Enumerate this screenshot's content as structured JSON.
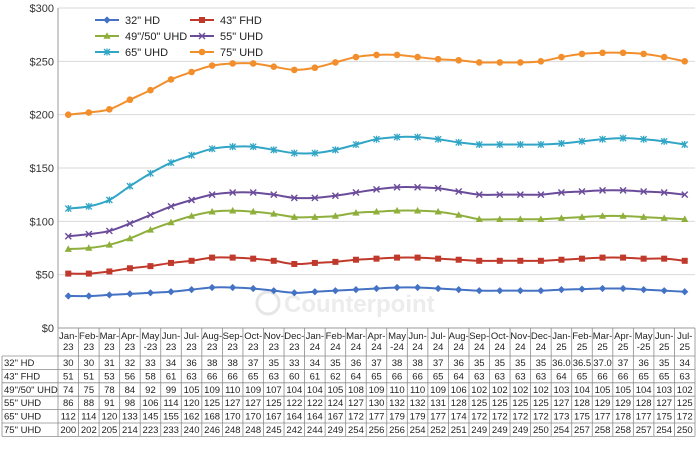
{
  "chart_data": {
    "type": "line",
    "title": "",
    "xlabel": "",
    "ylabel": "",
    "ylim": [
      0,
      300
    ],
    "y_ticks": [
      "$0",
      "$50",
      "$100",
      "$150",
      "$200",
      "$250",
      "$300"
    ],
    "grid": "horizontal",
    "legend_position": "top-left (inside plot)",
    "watermark": "Counterpoint",
    "categories": [
      [
        "Jan-",
        "23"
      ],
      [
        "Feb-",
        "23"
      ],
      [
        "Mar-",
        "23"
      ],
      [
        "Apr-",
        "23"
      ],
      [
        "May",
        "-23"
      ],
      [
        "Jun-",
        "23"
      ],
      [
        "Jul-",
        "23"
      ],
      [
        "Aug-",
        "23"
      ],
      [
        "Sep-",
        "23"
      ],
      [
        "Oct-",
        "23"
      ],
      [
        "Nov-",
        "23"
      ],
      [
        "Dec-",
        "23"
      ],
      [
        "Jan-",
        "24"
      ],
      [
        "Feb-",
        "24"
      ],
      [
        "Mar-",
        "24"
      ],
      [
        "Apr-",
        "24"
      ],
      [
        "May",
        "-24"
      ],
      [
        "Jun-",
        "24"
      ],
      [
        "Jul-",
        "24"
      ],
      [
        "Aug-",
        "24"
      ],
      [
        "Sep-",
        "24"
      ],
      [
        "Oct-",
        "24"
      ],
      [
        "Nov-",
        "24"
      ],
      [
        "Dec-",
        "24"
      ],
      [
        "Jan-",
        "25"
      ],
      [
        "Feb-",
        "25"
      ],
      [
        "Mar-",
        "25"
      ],
      [
        "Apr-",
        "25"
      ],
      [
        "May",
        "-25"
      ],
      [
        "Jun-",
        "25"
      ],
      [
        "Jul-",
        "25"
      ]
    ],
    "series": [
      {
        "name": "32\" HD",
        "color": "#4472C4",
        "marker": "diamond",
        "values": [
          30,
          30,
          31,
          32,
          33,
          34,
          36,
          38,
          38,
          37,
          35,
          33,
          34,
          35,
          36,
          37,
          38,
          38,
          37,
          36,
          35,
          35,
          35,
          35,
          36,
          36.5,
          37,
          37,
          36,
          35,
          34
        ],
        "labels": [
          "30",
          "30",
          "31",
          "32",
          "33",
          "34",
          "36",
          "38",
          "38",
          "37",
          "35",
          "33",
          "34",
          "35",
          "36",
          "37",
          "38",
          "38",
          "37",
          "36",
          "35",
          "35",
          "35",
          "35",
          "36.0",
          "36.5",
          "37.0",
          "37",
          "36",
          "35",
          "34"
        ]
      },
      {
        "name": "43\" FHD",
        "color": "#C0392B",
        "marker": "square",
        "values": [
          51,
          51,
          53,
          56,
          58,
          61,
          63,
          66,
          66,
          65,
          63,
          60,
          61,
          62,
          64,
          65,
          66,
          66,
          65,
          64,
          63,
          63,
          63,
          63,
          64,
          65,
          66,
          66,
          65,
          65,
          63
        ],
        "labels": [
          "51",
          "51",
          "53",
          "56",
          "58",
          "61",
          "63",
          "66",
          "66",
          "65",
          "63",
          "60",
          "61",
          "62",
          "64",
          "65",
          "66",
          "66",
          "65",
          "64",
          "63",
          "63",
          "63",
          "63",
          "64",
          "65",
          "66",
          "66",
          "65",
          "65",
          "63"
        ]
      },
      {
        "name": "49\"/50\" UHD",
        "color": "#8FAF3C",
        "marker": "triangle",
        "values": [
          74,
          75,
          78,
          84,
          92,
          99,
          105,
          109,
          110,
          109,
          107,
          104,
          104,
          105,
          108,
          109,
          110,
          110,
          109,
          106,
          102,
          102,
          102,
          102,
          103,
          104,
          105,
          105,
          104,
          103,
          102
        ],
        "labels": [
          "74",
          "75",
          "78",
          "84",
          "92",
          "99",
          "105",
          "109",
          "110",
          "109",
          "107",
          "104",
          "104",
          "105",
          "108",
          "109",
          "110",
          "110",
          "109",
          "106",
          "102",
          "102",
          "102",
          "102",
          "103",
          "104",
          "105",
          "105",
          "104",
          "103",
          "102"
        ]
      },
      {
        "name": "55\" UHD",
        "color": "#6B4C9A",
        "marker": "x",
        "values": [
          86,
          88,
          91,
          98,
          106,
          114,
          120,
          125,
          127,
          127,
          125,
          122,
          122,
          124,
          127,
          130,
          132,
          132,
          131,
          128,
          125,
          125,
          125,
          125,
          127,
          128,
          129,
          129,
          128,
          127,
          125
        ],
        "labels": [
          "86",
          "88",
          "91",
          "98",
          "106",
          "114",
          "120",
          "125",
          "127",
          "127",
          "125",
          "122",
          "122",
          "124",
          "127",
          "130",
          "132",
          "132",
          "131",
          "128",
          "125",
          "125",
          "125",
          "125",
          "127",
          "128",
          "129",
          "129",
          "128",
          "127",
          "125"
        ]
      },
      {
        "name": "65\" UHD",
        "color": "#31A5C6",
        "marker": "star",
        "values": [
          112,
          114,
          120,
          133,
          145,
          155,
          162,
          168,
          170,
          170,
          167,
          164,
          164,
          167,
          172,
          177,
          179,
          179,
          177,
          174,
          172,
          172,
          172,
          172,
          173,
          175,
          177,
          178,
          177,
          175,
          172
        ],
        "labels": [
          "112",
          "114",
          "120",
          "133",
          "145",
          "155",
          "162",
          "168",
          "170",
          "170",
          "167",
          "164",
          "164",
          "167",
          "172",
          "177",
          "179",
          "179",
          "177",
          "174",
          "172",
          "172",
          "172",
          "172",
          "173",
          "175",
          "177",
          "178",
          "177",
          "175",
          "172"
        ]
      },
      {
        "name": "75\" UHD",
        "color": "#F28E2B",
        "marker": "circle",
        "values": [
          200,
          202,
          205,
          214,
          223,
          233,
          240,
          246,
          248,
          248,
          245,
          242,
          244,
          249,
          254,
          256,
          256,
          254,
          252,
          251,
          249,
          249,
          249,
          250,
          254,
          257,
          258,
          258,
          257,
          254,
          250
        ],
        "labels": [
          "200",
          "202",
          "205",
          "214",
          "223",
          "233",
          "240",
          "246",
          "248",
          "248",
          "245",
          "242",
          "244",
          "249",
          "254",
          "256",
          "256",
          "254",
          "252",
          "251",
          "249",
          "249",
          "249",
          "250",
          "254",
          "257",
          "258",
          "258",
          "257",
          "254",
          "250"
        ]
      }
    ]
  }
}
